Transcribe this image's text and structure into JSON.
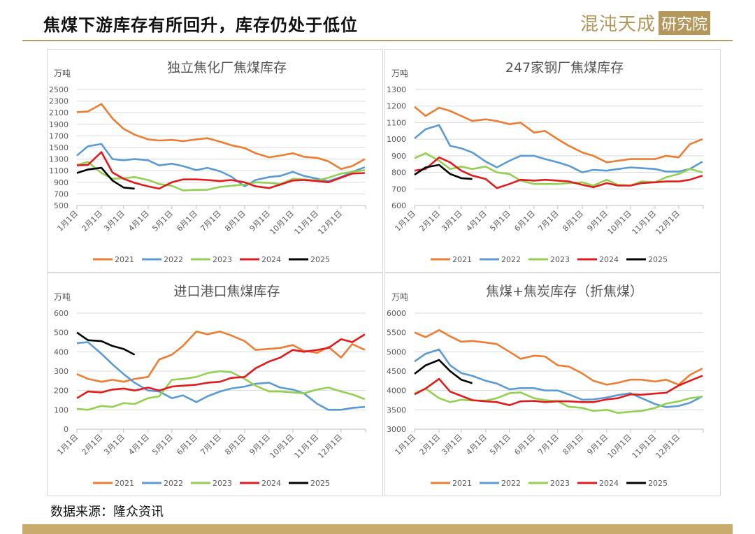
{
  "header": {
    "title": "焦煤下游库存有所回升，库存仍处于低位",
    "logo_text": "混沌天成研究院",
    "logo_part1": "混沌天成",
    "logo_part2": "研究院"
  },
  "footer": {
    "source": "数据来源：隆众资讯"
  },
  "colors": {
    "2021": "#ED7D31",
    "2022": "#5B9BD5",
    "2023": "#92D050",
    "2024": "#E31A1C",
    "2025": "#000000",
    "accent": "#B89C63"
  },
  "chart_data": [
    {
      "type": "line",
      "title": "独立焦化厂焦煤库存",
      "ylabel": "万吨",
      "ylim": [
        500,
        2500
      ],
      "yticks": [
        500,
        700,
        900,
        1100,
        1300,
        1500,
        1700,
        1900,
        2100,
        2300,
        2500
      ],
      "x_tick_labels": [
        "1月1日",
        "2月1日",
        "3月1日",
        "4月1日",
        "5月1日",
        "6月1日",
        "7月1日",
        "8月1日",
        "9月1日",
        "10月1日",
        "11月1日",
        "12月1日"
      ],
      "legend": "bottom",
      "grid": true,
      "x": [
        "01-01",
        "01-15",
        "02-01",
        "02-15",
        "03-01",
        "03-15",
        "04-01",
        "04-15",
        "05-01",
        "05-15",
        "06-01",
        "06-15",
        "07-01",
        "07-15",
        "08-01",
        "08-15",
        "09-01",
        "09-15",
        "10-01",
        "10-15",
        "11-01",
        "11-15",
        "12-01",
        "12-15",
        "12-31"
      ],
      "series": [
        {
          "name": "2021",
          "values": [
            2110,
            2120,
            2250,
            2000,
            1820,
            1720,
            1640,
            1620,
            1630,
            1610,
            1640,
            1660,
            1600,
            1540,
            1490,
            1400,
            1330,
            1360,
            1400,
            1340,
            1320,
            1260,
            1130,
            1180,
            1300
          ]
        },
        {
          "name": "2022",
          "values": [
            1360,
            1520,
            1560,
            1300,
            1280,
            1300,
            1280,
            1190,
            1220,
            1180,
            1110,
            1150,
            1090,
            1000,
            830,
            940,
            990,
            1010,
            1080,
            1010,
            960,
            920,
            990,
            1080,
            1160
          ]
        },
        {
          "name": "2023",
          "values": [
            1200,
            1250,
            1060,
            960,
            970,
            990,
            940,
            870,
            840,
            760,
            770,
            770,
            820,
            840,
            860,
            900,
            890,
            870,
            960,
            950,
            930,
            980,
            1050,
            1080,
            1110
          ]
        },
        {
          "name": "2024",
          "values": [
            1190,
            1200,
            1420,
            1070,
            960,
            890,
            830,
            790,
            900,
            950,
            950,
            940,
            920,
            940,
            900,
            830,
            800,
            860,
            930,
            940,
            920,
            900,
            980,
            1050,
            1060
          ]
        },
        {
          "name": "2025",
          "values": [
            1060,
            1120,
            1150,
            930,
            810,
            790,
            null,
            null,
            null,
            null,
            null,
            null,
            null,
            null,
            null,
            null,
            null,
            null,
            null,
            null,
            null,
            null,
            null,
            null,
            null
          ]
        }
      ]
    },
    {
      "type": "line",
      "title": "247家钢厂焦煤库存",
      "ylabel": "万吨",
      "ylim": [
        600,
        1300
      ],
      "yticks": [
        600,
        700,
        800,
        900,
        1000,
        1100,
        1200,
        1300
      ],
      "x_tick_labels": [
        "1月1日",
        "2月1日",
        "3月1日",
        "4月1日",
        "5月1日",
        "6月1日",
        "7月1日",
        "8月1日",
        "9月1日",
        "10月1日",
        "11月1日",
        "12月1日"
      ],
      "legend": "bottom",
      "grid": true,
      "x": [
        "01-01",
        "01-15",
        "02-01",
        "02-15",
        "03-01",
        "03-15",
        "04-01",
        "04-15",
        "05-01",
        "05-15",
        "06-01",
        "06-15",
        "07-01",
        "07-15",
        "08-01",
        "08-15",
        "09-01",
        "09-15",
        "10-01",
        "10-15",
        "11-01",
        "11-15",
        "12-01",
        "12-15",
        "12-31"
      ],
      "series": [
        {
          "name": "2021",
          "values": [
            1195,
            1140,
            1190,
            1170,
            1140,
            1110,
            1120,
            1110,
            1090,
            1100,
            1040,
            1050,
            1000,
            960,
            920,
            900,
            860,
            870,
            880,
            880,
            880,
            900,
            890,
            970,
            1000
          ]
        },
        {
          "name": "2022",
          "values": [
            1005,
            1060,
            1085,
            960,
            945,
            920,
            865,
            830,
            870,
            900,
            900,
            880,
            860,
            840,
            800,
            815,
            810,
            820,
            830,
            825,
            820,
            805,
            805,
            820,
            865
          ]
        },
        {
          "name": "2023",
          "values": [
            885,
            915,
            870,
            820,
            835,
            820,
            835,
            800,
            790,
            750,
            730,
            730,
            730,
            735,
            740,
            720,
            755,
            725,
            720,
            745,
            740,
            770,
            790,
            820,
            800
          ]
        },
        {
          "name": "2024",
          "values": [
            810,
            820,
            890,
            860,
            810,
            780,
            760,
            705,
            730,
            755,
            750,
            755,
            750,
            745,
            725,
            710,
            735,
            720,
            720,
            735,
            740,
            745,
            745,
            755,
            780
          ]
        },
        {
          "name": "2025",
          "values": [
            785,
            830,
            845,
            790,
            765,
            760,
            null,
            null,
            null,
            null,
            null,
            null,
            null,
            null,
            null,
            null,
            null,
            null,
            null,
            null,
            null,
            null,
            null,
            null,
            null
          ]
        }
      ]
    },
    {
      "type": "line",
      "title": "进口港口焦煤库存",
      "ylabel": "万吨",
      "ylim": [
        0,
        600
      ],
      "yticks": [
        0,
        100,
        200,
        300,
        400,
        500,
        600
      ],
      "x_tick_labels": [
        "1月1日",
        "2月1日",
        "3月1日",
        "4月1日",
        "5月1日",
        "6月1日",
        "7月1日",
        "8月1日",
        "9月1日",
        "10月1日",
        "11月1日",
        "12月1日"
      ],
      "legend": "bottom",
      "grid": true,
      "x": [
        "01-01",
        "01-15",
        "02-01",
        "02-15",
        "03-01",
        "03-15",
        "04-01",
        "04-15",
        "05-01",
        "05-15",
        "06-01",
        "06-15",
        "07-01",
        "07-15",
        "08-01",
        "08-15",
        "09-01",
        "09-15",
        "10-01",
        "10-15",
        "11-01",
        "11-15",
        "12-01",
        "12-15",
        "12-31"
      ],
      "series": [
        {
          "name": "2021",
          "values": [
            285,
            260,
            245,
            255,
            245,
            260,
            270,
            360,
            385,
            430,
            505,
            490,
            505,
            485,
            455,
            410,
            415,
            420,
            435,
            405,
            395,
            425,
            370,
            440,
            410
          ]
        },
        {
          "name": "2022",
          "values": [
            445,
            450,
            390,
            335,
            285,
            240,
            200,
            195,
            160,
            175,
            140,
            170,
            195,
            210,
            220,
            235,
            240,
            215,
            205,
            185,
            130,
            100,
            100,
            110,
            115
          ]
        },
        {
          "name": "2023",
          "values": [
            105,
            100,
            120,
            115,
            135,
            130,
            160,
            170,
            255,
            260,
            270,
            290,
            300,
            295,
            260,
            225,
            195,
            195,
            190,
            185,
            205,
            215,
            195,
            180,
            155
          ]
        },
        {
          "name": "2024",
          "values": [
            160,
            195,
            190,
            205,
            210,
            200,
            215,
            200,
            220,
            225,
            230,
            240,
            245,
            265,
            270,
            315,
            350,
            370,
            410,
            400,
            410,
            420,
            465,
            450,
            490
          ]
        },
        {
          "name": "2025",
          "values": [
            500,
            460,
            455,
            430,
            415,
            385,
            null,
            null,
            null,
            null,
            null,
            null,
            null,
            null,
            null,
            null,
            null,
            null,
            null,
            null,
            null,
            null,
            null,
            null,
            null
          ]
        }
      ]
    },
    {
      "type": "line",
      "title": "焦煤+焦炭库存（折焦煤）",
      "ylabel": "万吨",
      "ylim": [
        3000,
        6000
      ],
      "yticks": [
        3000,
        3500,
        4000,
        4500,
        5000,
        5500,
        6000
      ],
      "x_tick_labels": [
        "1月1日",
        "2月1日",
        "3月1日",
        "4月1日",
        "5月1日",
        "6月1日",
        "7月1日",
        "8月1日",
        "9月1日",
        "10月1日",
        "11月1日",
        "12月1日"
      ],
      "legend": "bottom",
      "grid": true,
      "x": [
        "01-01",
        "01-15",
        "02-01",
        "02-15",
        "03-01",
        "03-15",
        "04-01",
        "04-15",
        "05-01",
        "05-15",
        "06-01",
        "06-15",
        "07-01",
        "07-15",
        "08-01",
        "08-15",
        "09-01",
        "09-15",
        "10-01",
        "10-15",
        "11-01",
        "11-15",
        "12-01",
        "12-15",
        "12-31"
      ],
      "series": [
        {
          "name": "2021",
          "values": [
            5500,
            5380,
            5560,
            5400,
            5260,
            5280,
            5240,
            5200,
            5000,
            4820,
            4900,
            4880,
            4650,
            4620,
            4440,
            4250,
            4150,
            4200,
            4280,
            4280,
            4230,
            4280,
            4150,
            4400,
            4570
          ]
        },
        {
          "name": "2022",
          "values": [
            4750,
            4950,
            5060,
            4650,
            4450,
            4380,
            4250,
            4180,
            4030,
            4060,
            4060,
            4000,
            4000,
            3900,
            3760,
            3770,
            3820,
            3880,
            3930,
            3800,
            3650,
            3570,
            3600,
            3680,
            3850
          ]
        },
        {
          "name": "2023",
          "values": [
            3920,
            4050,
            3800,
            3700,
            3760,
            3740,
            3740,
            3800,
            3930,
            3950,
            3800,
            3750,
            3720,
            3580,
            3550,
            3470,
            3500,
            3420,
            3450,
            3470,
            3550,
            3660,
            3720,
            3800,
            3840
          ]
        },
        {
          "name": "2024",
          "values": [
            3900,
            4050,
            4300,
            3970,
            3860,
            3750,
            3720,
            3700,
            3620,
            3720,
            3730,
            3700,
            3720,
            3720,
            3700,
            3700,
            3770,
            3800,
            3900,
            3890,
            3920,
            3940,
            4130,
            4250,
            4380
          ]
        },
        {
          "name": "2025",
          "values": [
            4430,
            4650,
            4790,
            4500,
            4280,
            4190,
            null,
            null,
            null,
            null,
            null,
            null,
            null,
            null,
            null,
            null,
            null,
            null,
            null,
            null,
            null,
            null,
            null,
            null,
            null
          ]
        }
      ]
    }
  ]
}
